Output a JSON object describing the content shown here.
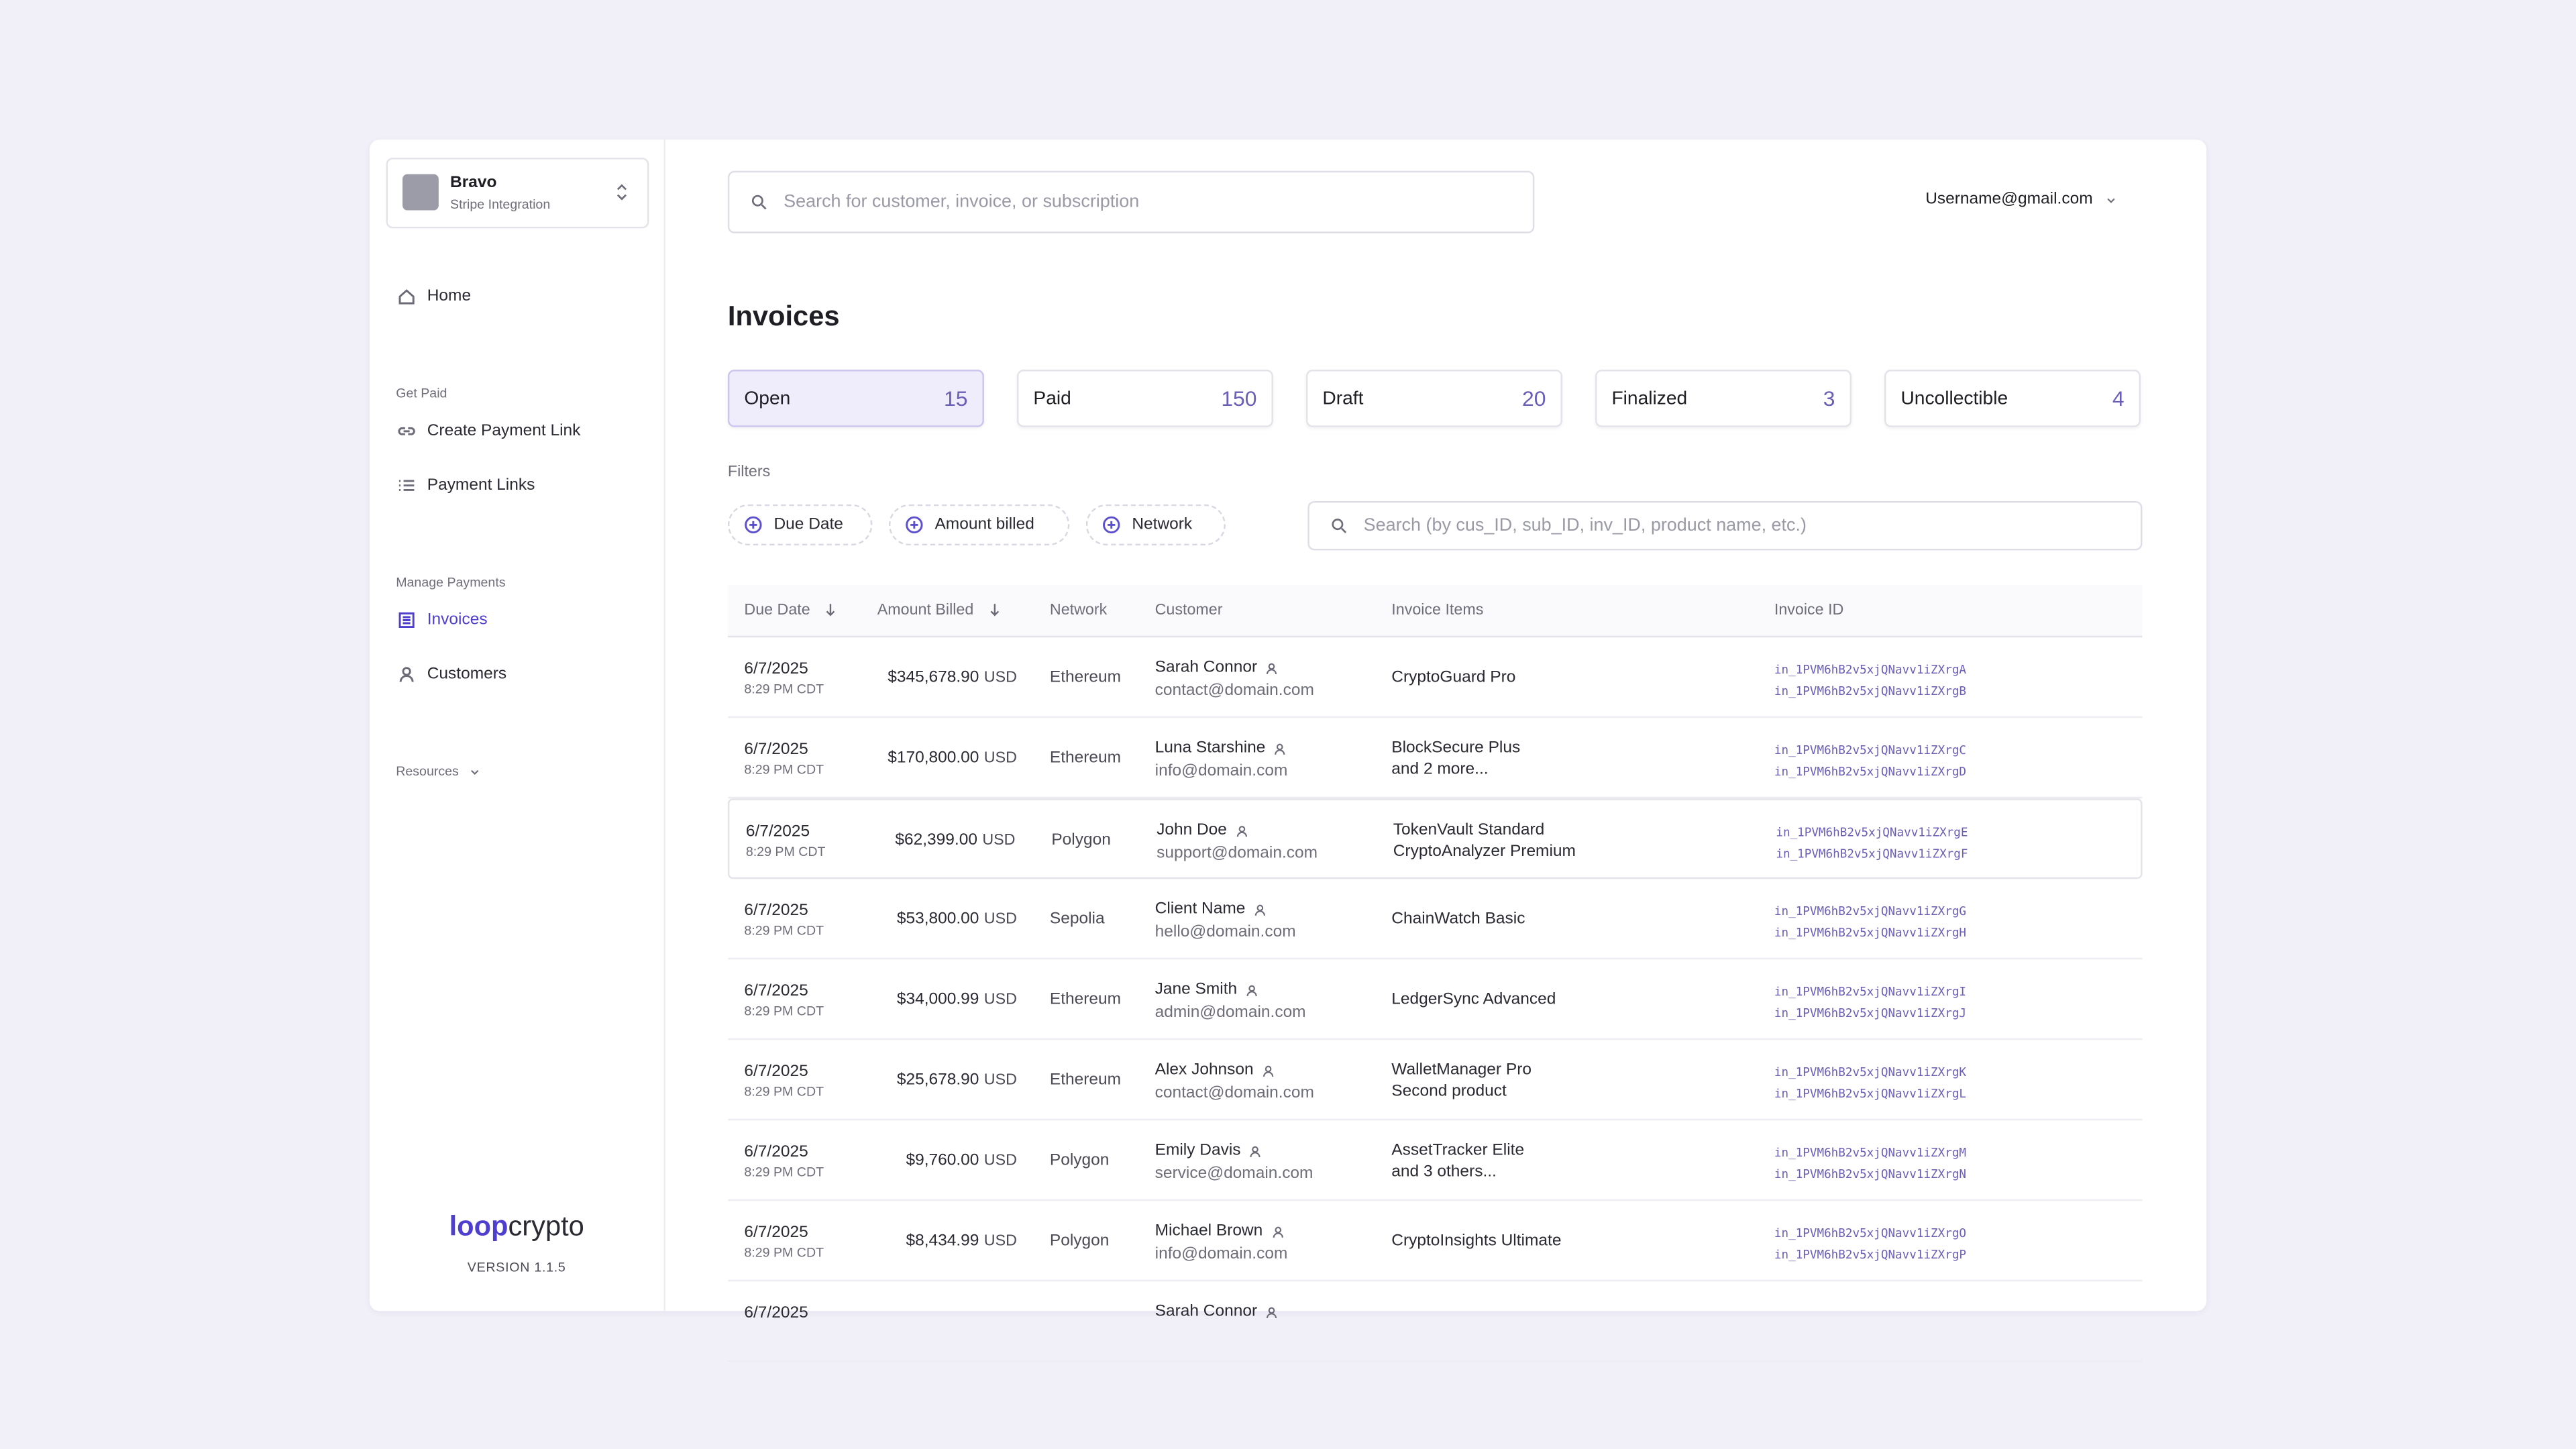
{
  "sidebar": {
    "workspace": {
      "name": "Bravo",
      "subtitle": "Stripe Integration"
    },
    "home": "Home",
    "sections": [
      {
        "label": "Get Paid",
        "items": [
          "Create Payment Link",
          "Payment Links"
        ]
      },
      {
        "label": "Manage Payments",
        "items": [
          "Invoices",
          "Customers"
        ]
      }
    ],
    "resources": "Resources",
    "logo": {
      "bold": "loop",
      "light": "crypto"
    },
    "version": "VERSION 1.1.5"
  },
  "header": {
    "search_placeholder": "Search for customer, invoice, or subscription",
    "user": "Username@gmail.com"
  },
  "title": "Invoices",
  "tabs": [
    {
      "name": "Open",
      "count": "15"
    },
    {
      "name": "Paid",
      "count": "150"
    },
    {
      "name": "Draft",
      "count": "20"
    },
    {
      "name": "Finalized",
      "count": "3"
    },
    {
      "name": "Uncollectible",
      "count": "4"
    }
  ],
  "filters": {
    "label": "Filters",
    "chips": [
      "Due Date",
      "Amount billed",
      "Network"
    ],
    "search_placeholder": "Search (by cus_ID, sub_ID, inv_ID, product name, etc.)"
  },
  "table": {
    "columns": [
      "Due Date",
      "Amount Billed",
      "Network",
      "Customer",
      "Invoice Items",
      "Invoice ID"
    ],
    "rows": [
      {
        "date": "6/7/2025",
        "time": "8:29 PM CDT",
        "amount": "$345,678.90",
        "currency": "USD",
        "network": "Ethereum",
        "customer": "Sarah Connor",
        "email": "contact@domain.com",
        "items": [
          "CryptoGuard Pro"
        ],
        "ids": [
          "in_1PVM6hB2v5xjQNavv1iZXrgA",
          "in_1PVM6hB2v5xjQNavv1iZXrgB"
        ]
      },
      {
        "date": "6/7/2025",
        "time": "8:29 PM CDT",
        "amount": "$170,800.00",
        "currency": "USD",
        "network": "Ethereum",
        "customer": "Luna Starshine",
        "email": "info@domain.com",
        "items": [
          "BlockSecure Plus",
          "and 2 more..."
        ],
        "ids": [
          "in_1PVM6hB2v5xjQNavv1iZXrgC",
          "in_1PVM6hB2v5xjQNavv1iZXrgD"
        ]
      },
      {
        "date": "6/7/2025",
        "time": "8:29 PM CDT",
        "amount": "$62,399.00",
        "currency": "USD",
        "network": "Polygon",
        "customer": "John Doe",
        "email": "support@domain.com",
        "items": [
          "TokenVault Standard",
          "CryptoAnalyzer Premium"
        ],
        "ids": [
          "in_1PVM6hB2v5xjQNavv1iZXrgE",
          "in_1PVM6hB2v5xjQNavv1iZXrgF"
        ]
      },
      {
        "date": "6/7/2025",
        "time": "8:29 PM CDT",
        "amount": "$53,800.00",
        "currency": "USD",
        "network": "Sepolia",
        "customer": "Client Name",
        "email": "hello@domain.com",
        "items": [
          "ChainWatch Basic"
        ],
        "ids": [
          "in_1PVM6hB2v5xjQNavv1iZXrgG",
          "in_1PVM6hB2v5xjQNavv1iZXrgH"
        ]
      },
      {
        "date": "6/7/2025",
        "time": "8:29 PM CDT",
        "amount": "$34,000.99",
        "currency": "USD",
        "network": "Ethereum",
        "customer": "Jane Smith",
        "email": "admin@domain.com",
        "items": [
          "LedgerSync Advanced"
        ],
        "ids": [
          "in_1PVM6hB2v5xjQNavv1iZXrgI",
          "in_1PVM6hB2v5xjQNavv1iZXrgJ"
        ]
      },
      {
        "date": "6/7/2025",
        "time": "8:29 PM CDT",
        "amount": "$25,678.90",
        "currency": "USD",
        "network": "Ethereum",
        "customer": "Alex Johnson",
        "email": "contact@domain.com",
        "items": [
          "WalletManager Pro",
          "Second product"
        ],
        "ids": [
          "in_1PVM6hB2v5xjQNavv1iZXrgK",
          "in_1PVM6hB2v5xjQNavv1iZXrgL"
        ]
      },
      {
        "date": "6/7/2025",
        "time": "8:29 PM CDT",
        "amount": "$9,760.00",
        "currency": "USD",
        "network": "Polygon",
        "customer": "Emily Davis",
        "email": "service@domain.com",
        "items": [
          "AssetTracker Elite",
          "and 3 others..."
        ],
        "ids": [
          "in_1PVM6hB2v5xjQNavv1iZXrgM",
          "in_1PVM6hB2v5xjQNavv1iZXrgN"
        ]
      },
      {
        "date": "6/7/2025",
        "time": "8:29 PM CDT",
        "amount": "$8,434.99",
        "currency": "USD",
        "network": "Polygon",
        "customer": "Michael Brown",
        "email": "info@domain.com",
        "items": [
          "CryptoInsights Ultimate"
        ],
        "ids": [
          "in_1PVM6hB2v5xjQNavv1iZXrgO",
          "in_1PVM6hB2v5xjQNavv1iZXrgP"
        ]
      },
      {
        "date": "6/7/2025",
        "customer": "Sarah Connor"
      }
    ]
  }
}
